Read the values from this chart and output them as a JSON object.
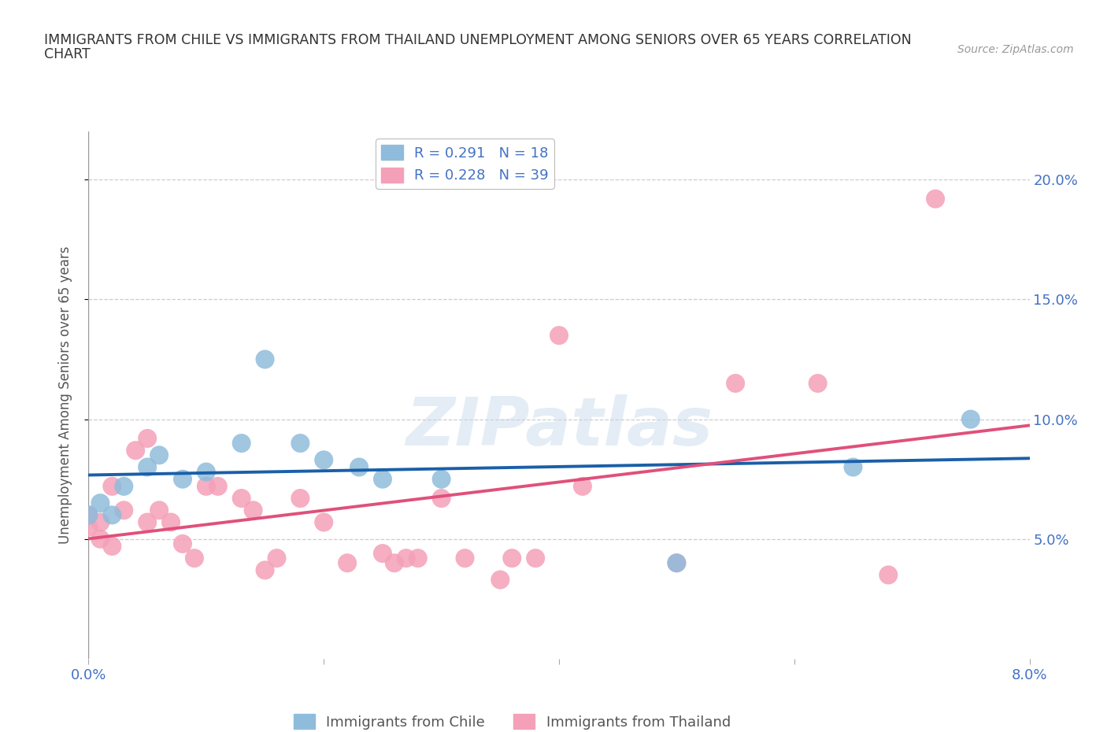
{
  "title_line1": "IMMIGRANTS FROM CHILE VS IMMIGRANTS FROM THAILAND UNEMPLOYMENT AMONG SENIORS OVER 65 YEARS CORRELATION",
  "title_line2": "CHART",
  "source": "Source: ZipAtlas.com",
  "ylabel": "Unemployment Among Seniors over 65 years",
  "watermark": "ZIPatlas",
  "xlim": [
    0.0,
    0.08
  ],
  "ylim": [
    0.0,
    0.22
  ],
  "yticks_right": [
    0.05,
    0.1,
    0.15,
    0.2
  ],
  "ytick_labels_right": [
    "5.0%",
    "10.0%",
    "15.0%",
    "20.0%"
  ],
  "xticks": [
    0.0,
    0.02,
    0.04,
    0.06,
    0.08
  ],
  "xtick_labels": [
    "0.0%",
    "",
    "",
    "",
    "8.0%"
  ],
  "chile_color": "#8fbcdb",
  "thailand_color": "#f4a0b8",
  "chile_line_color": "#1a5fa8",
  "thailand_line_color": "#e0507a",
  "right_tick_color": "#4472c4",
  "axis_label_color": "#555555",
  "background_color": "#ffffff",
  "grid_color": "#cccccc",
  "title_color": "#333333",
  "legend_label_chile": "R = 0.291   N = 18",
  "legend_label_thailand": "R = 0.228   N = 39",
  "legend_bottom_chile": "Immigrants from Chile",
  "legend_bottom_thailand": "Immigrants from Thailand",
  "chile_x": [
    0.0,
    0.001,
    0.002,
    0.003,
    0.005,
    0.006,
    0.008,
    0.01,
    0.013,
    0.015,
    0.018,
    0.02,
    0.023,
    0.025,
    0.03,
    0.05,
    0.065,
    0.075
  ],
  "chile_y": [
    0.06,
    0.065,
    0.06,
    0.072,
    0.08,
    0.085,
    0.075,
    0.078,
    0.09,
    0.125,
    0.09,
    0.083,
    0.08,
    0.075,
    0.075,
    0.04,
    0.08,
    0.1
  ],
  "thailand_x": [
    0.0,
    0.0,
    0.001,
    0.001,
    0.002,
    0.002,
    0.003,
    0.004,
    0.005,
    0.005,
    0.006,
    0.007,
    0.008,
    0.009,
    0.01,
    0.011,
    0.013,
    0.014,
    0.015,
    0.016,
    0.018,
    0.02,
    0.022,
    0.025,
    0.026,
    0.027,
    0.028,
    0.03,
    0.032,
    0.035,
    0.036,
    0.038,
    0.04,
    0.042,
    0.05,
    0.055,
    0.062,
    0.068,
    0.072
  ],
  "thailand_y": [
    0.055,
    0.06,
    0.05,
    0.057,
    0.047,
    0.072,
    0.062,
    0.087,
    0.057,
    0.092,
    0.062,
    0.057,
    0.048,
    0.042,
    0.072,
    0.072,
    0.067,
    0.062,
    0.037,
    0.042,
    0.067,
    0.057,
    0.04,
    0.044,
    0.04,
    0.042,
    0.042,
    0.067,
    0.042,
    0.033,
    0.042,
    0.042,
    0.135,
    0.072,
    0.04,
    0.115,
    0.115,
    0.035,
    0.192
  ]
}
